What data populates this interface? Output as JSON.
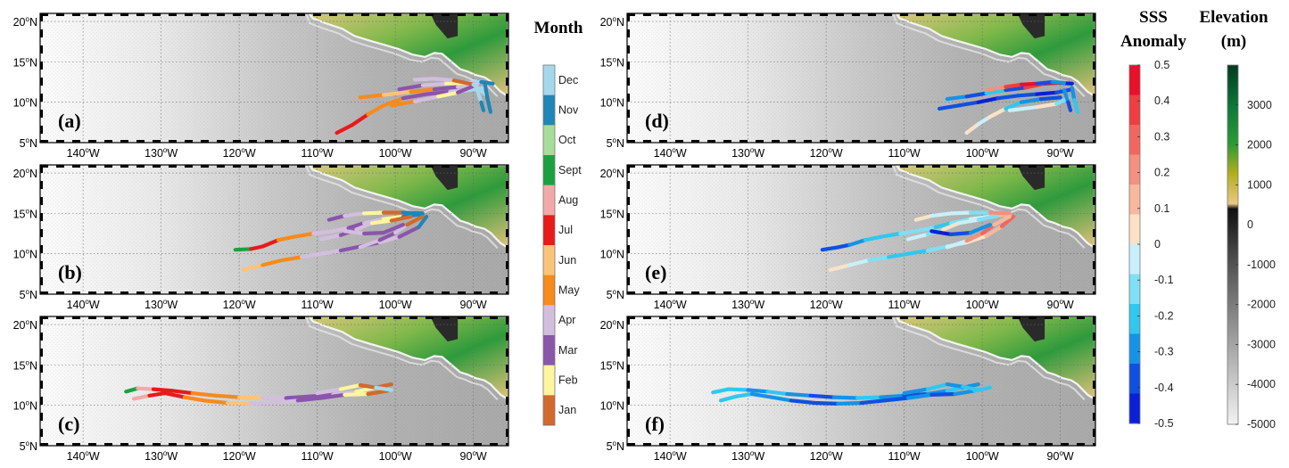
{
  "lon_ticks": [
    {
      "deg": "140",
      "hemi": "W"
    },
    {
      "deg": "130",
      "hemi": "W"
    },
    {
      "deg": "120",
      "hemi": "W"
    },
    {
      "deg": "110",
      "hemi": "W"
    },
    {
      "deg": "100",
      "hemi": "W"
    },
    {
      "deg": "90",
      "hemi": "W"
    }
  ],
  "lat_ticks": [
    {
      "deg": "20",
      "hemi": "N"
    },
    {
      "deg": "15",
      "hemi": "N"
    },
    {
      "deg": "10",
      "hemi": "N"
    },
    {
      "deg": "5",
      "hemi": "N"
    }
  ],
  "panels": [
    {
      "id": "a",
      "label": "(a)",
      "mode": "month"
    },
    {
      "id": "b",
      "label": "(b)",
      "mode": "month"
    },
    {
      "id": "c",
      "label": "(c)",
      "mode": "month"
    },
    {
      "id": "d",
      "label": "(d)",
      "mode": "sss"
    },
    {
      "id": "e",
      "label": "(e)",
      "mode": "sss"
    },
    {
      "id": "f",
      "label": "(f)",
      "mode": "sss"
    }
  ],
  "month_colorbar": {
    "title": "Month",
    "items": [
      {
        "label": "Dec",
        "color": "#a6d8ec"
      },
      {
        "label": "Nov",
        "color": "#1f86b8"
      },
      {
        "label": "Oct",
        "color": "#a8dc9a"
      },
      {
        "label": "Sept",
        "color": "#1ba23e"
      },
      {
        "label": "Aug",
        "color": "#f4a9a9"
      },
      {
        "label": "Jul",
        "color": "#e81a1a"
      },
      {
        "label": "Jun",
        "color": "#fbc37a"
      },
      {
        "label": "May",
        "color": "#f68a1c"
      },
      {
        "label": "Apr",
        "color": "#d4bedf"
      },
      {
        "label": "Mar",
        "color": "#8a55ab"
      },
      {
        "label": "Feb",
        "color": "#fdf5a0"
      },
      {
        "label": "Jan",
        "color": "#d2692d"
      }
    ]
  },
  "sss_colorbar": {
    "title_line1": "SSS",
    "title_line2": "Anomaly",
    "range": [
      -0.5,
      0.5
    ],
    "ticks": [
      "0.5",
      "0.4",
      "0.3",
      "0.2",
      "0.1",
      "0",
      "-0.1",
      "-0.2",
      "-0.3",
      "-0.4",
      "-0.5"
    ],
    "colors": [
      "#e8102a",
      "#ee3e42",
      "#f2665f",
      "#f58f80",
      "#f7b89d",
      "#fbe2c6",
      "#c9f0fa",
      "#7fdff4",
      "#31c7ee",
      "#1593e6",
      "#1050e0",
      "#0a1fd6"
    ]
  },
  "elevation_colorbar": {
    "title_line1": "Elevation",
    "title_line2": "(m)",
    "range": [
      -5000,
      4000
    ],
    "ticks": [
      "3000",
      "2000",
      "1000",
      "0",
      "-1000",
      "-2000",
      "-3000",
      "-4000",
      "-5000"
    ]
  }
}
